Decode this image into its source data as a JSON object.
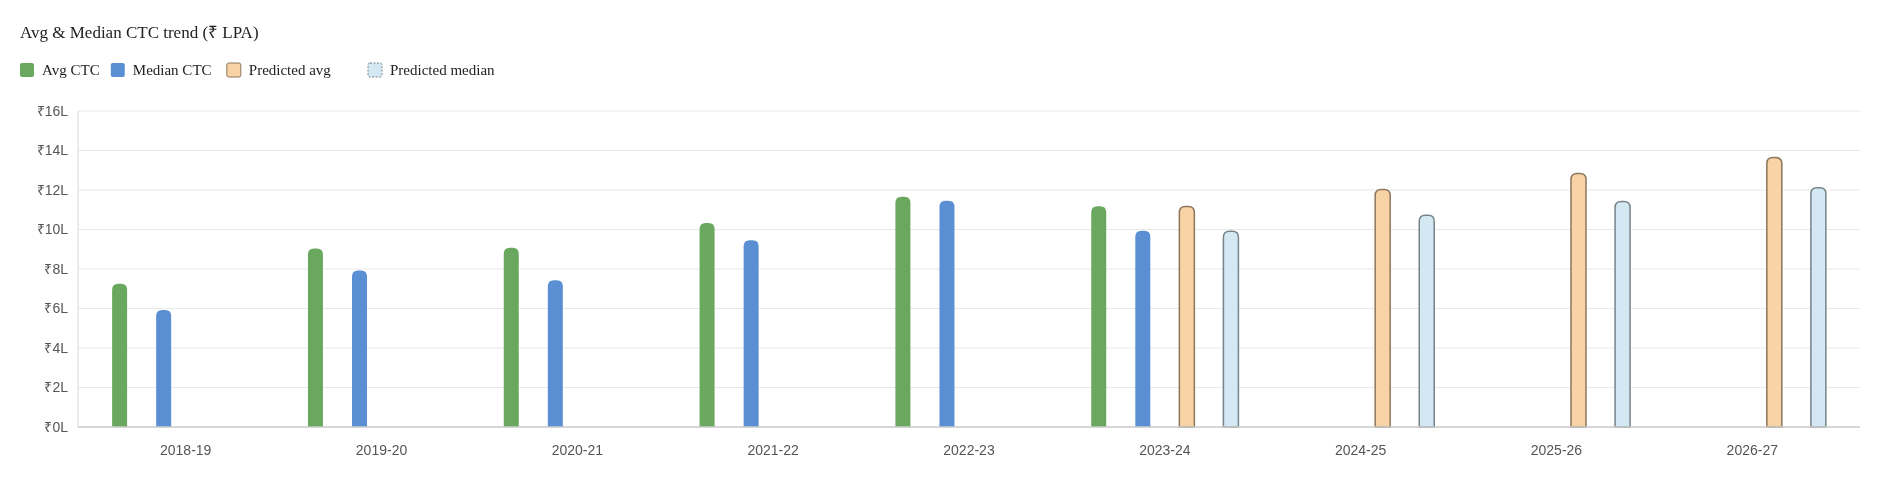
{
  "chart_data": {
    "type": "bar",
    "title": "Avg & Median CTC trend (₹ LPA)",
    "categories": [
      "2018-19",
      "2019-20",
      "2020-21",
      "2021-22",
      "2022-23",
      "2023-24",
      "2024-25",
      "2025-26",
      "2026-27"
    ],
    "series": [
      {
        "name": "Avg CTC",
        "color": "#6aa85f",
        "values": [
          7.25,
          9.04,
          9.07,
          10.33,
          11.66,
          11.18,
          null,
          null,
          null
        ]
      },
      {
        "name": "Median CTC",
        "color": "#5b8fd4",
        "values": [
          5.93,
          7.93,
          7.43,
          9.45,
          11.45,
          9.94,
          null,
          null,
          null
        ]
      },
      {
        "name": "Predicted avg",
        "color": "#f8d3a5",
        "values": [
          null,
          null,
          null,
          null,
          null,
          11.16,
          12.02,
          12.83,
          13.64
        ]
      },
      {
        "name": "Predicted median",
        "color": "#d3e8f3",
        "values": [
          null,
          null,
          null,
          null,
          null,
          9.91,
          10.72,
          11.42,
          12.11
        ]
      }
    ],
    "ylim": [
      0,
      16
    ],
    "yticks": [
      {
        "value": 0,
        "label": "₹0L"
      },
      {
        "value": 2,
        "label": "₹2L"
      },
      {
        "value": 4,
        "label": "₹4L"
      },
      {
        "value": 6,
        "label": "₹6L"
      },
      {
        "value": 8,
        "label": "₹8L"
      },
      {
        "value": 10,
        "label": "₹10L"
      },
      {
        "value": 12,
        "label": "₹12L"
      },
      {
        "value": 14,
        "label": "₹14L"
      },
      {
        "value": 16,
        "label": "₹16L"
      }
    ],
    "grid": "y",
    "legend": "top left"
  }
}
